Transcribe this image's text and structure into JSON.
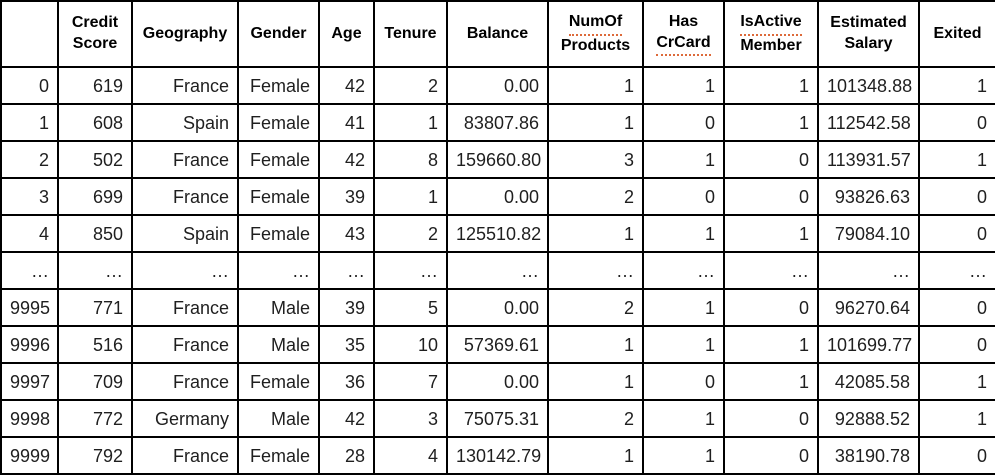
{
  "colors": {
    "border": "#000000",
    "text": "#1f1f1f",
    "header_text": "#000000",
    "spellcheck_underline": "#dd6a3a",
    "background": "#ffffff"
  },
  "table": {
    "columns": [
      {
        "id": "index",
        "lines": [
          {
            "text": "",
            "spellcheck": false
          }
        ]
      },
      {
        "id": "credit-score",
        "lines": [
          {
            "text": "Credit",
            "spellcheck": false
          },
          {
            "text": "Score",
            "spellcheck": false
          }
        ]
      },
      {
        "id": "geography",
        "lines": [
          {
            "text": "Geography",
            "spellcheck": false
          }
        ]
      },
      {
        "id": "gender",
        "lines": [
          {
            "text": "Gender",
            "spellcheck": false
          }
        ]
      },
      {
        "id": "age",
        "lines": [
          {
            "text": "Age",
            "spellcheck": false
          }
        ]
      },
      {
        "id": "tenure",
        "lines": [
          {
            "text": "Tenure",
            "spellcheck": false
          }
        ]
      },
      {
        "id": "balance",
        "lines": [
          {
            "text": "Balance",
            "spellcheck": false
          }
        ]
      },
      {
        "id": "num-of-products",
        "lines": [
          {
            "text": "NumOf",
            "spellcheck": true
          },
          {
            "text": "Products",
            "spellcheck": false
          }
        ]
      },
      {
        "id": "has-cr-card",
        "lines": [
          {
            "text": "Has",
            "spellcheck": false
          },
          {
            "text": "CrCard",
            "spellcheck": true
          }
        ]
      },
      {
        "id": "is-active-member",
        "lines": [
          {
            "text": "IsActive",
            "spellcheck": true
          },
          {
            "text": "Member",
            "spellcheck": false
          }
        ]
      },
      {
        "id": "estimated-salary",
        "lines": [
          {
            "text": "Estimated",
            "spellcheck": false
          },
          {
            "text": "Salary",
            "spellcheck": false
          }
        ]
      },
      {
        "id": "exited",
        "lines": [
          {
            "text": "Exited",
            "spellcheck": false
          }
        ]
      }
    ],
    "rows": [
      [
        "0",
        "619",
        "France",
        "Female",
        "42",
        "2",
        "0.00",
        "1",
        "1",
        "1",
        "101348.88",
        "1"
      ],
      [
        "1",
        "608",
        "Spain",
        "Female",
        "41",
        "1",
        "83807.86",
        "1",
        "0",
        "1",
        "112542.58",
        "0"
      ],
      [
        "2",
        "502",
        "France",
        "Female",
        "42",
        "8",
        "159660.80",
        "3",
        "1",
        "0",
        "113931.57",
        "1"
      ],
      [
        "3",
        "699",
        "France",
        "Female",
        "39",
        "1",
        "0.00",
        "2",
        "0",
        "0",
        "93826.63",
        "0"
      ],
      [
        "4",
        "850",
        "Spain",
        "Female",
        "43",
        "2",
        "125510.82",
        "1",
        "1",
        "1",
        "79084.10",
        "0"
      ],
      [
        "…",
        "…",
        "…",
        "…",
        "…",
        "…",
        "…",
        "…",
        "…",
        "…",
        "…",
        "…"
      ],
      [
        "9995",
        "771",
        "France",
        "Male",
        "39",
        "5",
        "0.00",
        "2",
        "1",
        "0",
        "96270.64",
        "0"
      ],
      [
        "9996",
        "516",
        "France",
        "Male",
        "35",
        "10",
        "57369.61",
        "1",
        "1",
        "1",
        "101699.77",
        "0"
      ],
      [
        "9997",
        "709",
        "France",
        "Female",
        "36",
        "7",
        "0.00",
        "1",
        "0",
        "1",
        "42085.58",
        "1"
      ],
      [
        "9998",
        "772",
        "Germany",
        "Male",
        "42",
        "3",
        "75075.31",
        "2",
        "1",
        "0",
        "92888.52",
        "1"
      ],
      [
        "9999",
        "792",
        "France",
        "Female",
        "28",
        "4",
        "130142.79",
        "1",
        "1",
        "0",
        "38190.78",
        "0"
      ]
    ]
  }
}
